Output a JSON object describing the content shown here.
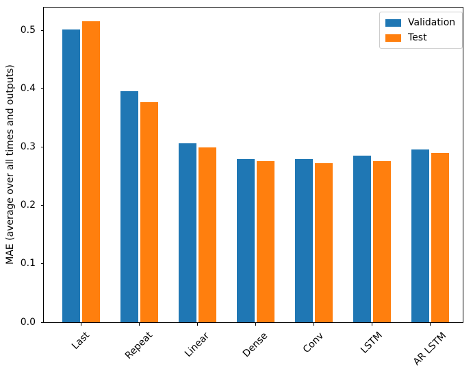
{
  "chart_data": {
    "type": "bar",
    "title": "",
    "xlabel": "",
    "ylabel": "MAE (average over all times and outputs)",
    "categories": [
      "Last",
      "Repeat",
      "Linear",
      "Dense",
      "Conv",
      "LSTM",
      "AR LSTM"
    ],
    "series": [
      {
        "name": "Validation",
        "color": "#1f77b4",
        "values": [
          0.501,
          0.396,
          0.306,
          0.28,
          0.279,
          0.285,
          0.296
        ]
      },
      {
        "name": "Test",
        "color": "#ff7f0e",
        "values": [
          0.515,
          0.377,
          0.299,
          0.276,
          0.273,
          0.276,
          0.29
        ]
      }
    ],
    "ylim": [
      0,
      0.539
    ],
    "yticks": [
      0.0,
      0.1,
      0.2,
      0.3,
      0.4,
      0.5
    ],
    "ytick_labels": [
      "0.0",
      "0.1",
      "0.2",
      "0.3",
      "0.4",
      "0.5"
    ],
    "xtick_rotation": 45,
    "grid": false,
    "legend": {
      "position": "upper right",
      "entries": [
        "Validation",
        "Test"
      ]
    }
  }
}
